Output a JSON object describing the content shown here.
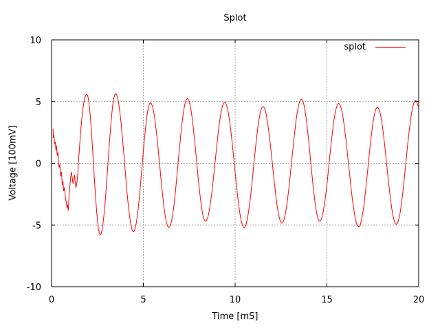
{
  "window": {
    "background": "#ffffff"
  },
  "chart_data": {
    "type": "line",
    "title": "Splot",
    "xlabel": "Time [mS]",
    "ylabel": "Voltage [100mV]",
    "xlim": [
      0,
      20
    ],
    "ylim": [
      -10,
      10
    ],
    "xticks": [
      0,
      5,
      10,
      15,
      20
    ],
    "yticks": [
      -10,
      -5,
      0,
      5,
      10
    ],
    "grid": true,
    "legend": {
      "position": "top-right-inside",
      "label": "splot",
      "line_color": "#ff0000"
    },
    "colors": {
      "series": "#ff0000",
      "grid": "#a0a0a0",
      "axis": "#000000",
      "background": "#ffffff"
    },
    "series": [
      {
        "name": "splot",
        "color": "#ff0000",
        "points_initial_transient": [
          [
            0.08,
            2.8
          ],
          [
            0.1,
            2.05
          ],
          [
            0.13,
            2.3
          ],
          [
            0.16,
            1.55
          ],
          [
            0.2,
            1.75
          ],
          [
            0.24,
            1.05
          ],
          [
            0.27,
            1.45
          ],
          [
            0.31,
            0.6
          ],
          [
            0.35,
            0.9
          ],
          [
            0.39,
            -0.1
          ],
          [
            0.42,
            -0.35
          ],
          [
            0.45,
            -0.05
          ],
          [
            0.5,
            -1.05
          ],
          [
            0.54,
            -0.7
          ],
          [
            0.58,
            -1.75
          ],
          [
            0.62,
            -1.45
          ],
          [
            0.66,
            -2.25
          ],
          [
            0.7,
            -1.95
          ],
          [
            0.74,
            -2.6
          ],
          [
            0.78,
            -3.0
          ],
          [
            0.81,
            -3.25
          ],
          [
            0.84,
            -3.6
          ],
          [
            0.87,
            -3.35
          ],
          [
            0.91,
            -3.85
          ],
          [
            0.95,
            -2.7
          ],
          [
            1.0,
            -1.8
          ],
          [
            1.05,
            -1.05
          ],
          [
            1.09,
            -0.7
          ],
          [
            1.13,
            -1.25
          ],
          [
            1.17,
            -1.65
          ],
          [
            1.21,
            -1.3
          ],
          [
            1.25,
            -0.95
          ],
          [
            1.29,
            -1.55
          ],
          [
            1.33,
            -2.0
          ],
          [
            1.38,
            -1.6
          ],
          [
            1.43,
            -0.8
          ],
          [
            1.47,
            0.2
          ],
          [
            1.52,
            1.2
          ],
          [
            1.57,
            2.3
          ],
          [
            1.63,
            3.3
          ],
          [
            1.69,
            4.2
          ],
          [
            1.75,
            4.85
          ],
          [
            1.81,
            5.3
          ],
          [
            1.86,
            5.5
          ],
          [
            1.92,
            5.6
          ]
        ],
        "extrema_steady_wave": [
          [
            1.92,
            5.6
          ],
          [
            2.65,
            -5.8
          ],
          [
            3.49,
            5.65
          ],
          [
            4.46,
            -5.55
          ],
          [
            5.39,
            4.9
          ],
          [
            6.39,
            -5.2
          ],
          [
            7.4,
            5.25
          ],
          [
            8.39,
            -4.7
          ],
          [
            9.43,
            4.95
          ],
          [
            10.49,
            -5.2
          ],
          [
            11.52,
            4.6
          ],
          [
            12.55,
            -4.85
          ],
          [
            13.61,
            5.2
          ],
          [
            14.61,
            -4.7
          ],
          [
            15.64,
            4.85
          ],
          [
            16.73,
            -5.15
          ],
          [
            17.75,
            4.55
          ],
          [
            18.78,
            -4.95
          ],
          [
            19.83,
            5.1
          ],
          [
            20.0,
            4.6
          ]
        ]
      }
    ]
  }
}
